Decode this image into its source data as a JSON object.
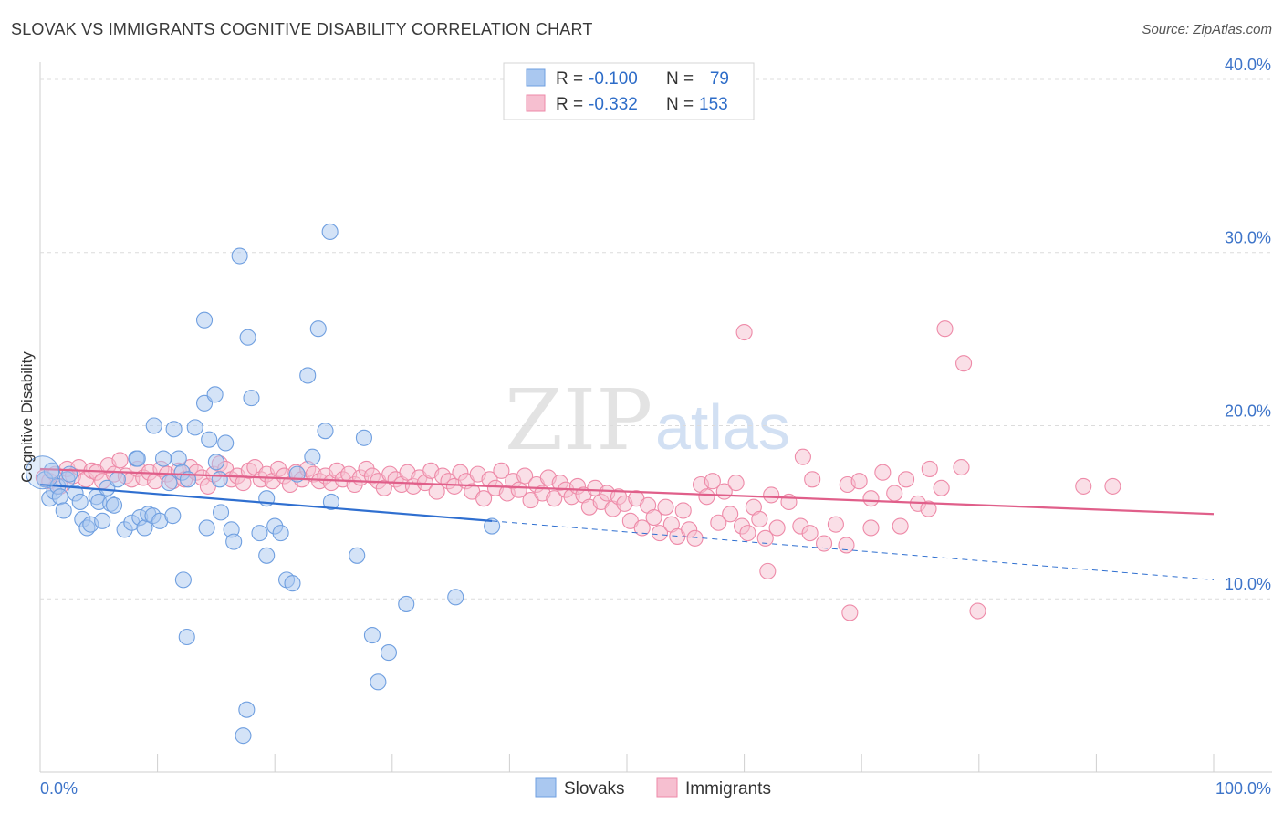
{
  "title": "SLOVAK VS IMMIGRANTS COGNITIVE DISABILITY CORRELATION CHART",
  "source": "Source: ZipAtlas.com",
  "watermark": {
    "left": "ZIP",
    "right": "atlas"
  },
  "chart_data": {
    "type": "scatter",
    "title": "SLOVAK VS IMMIGRANTS COGNITIVE DISABILITY CORRELATION CHART",
    "xlabel": "",
    "ylabel": "Cognitive Disability",
    "xlim": [
      0,
      100
    ],
    "ylim": [
      0,
      41
    ],
    "x_tick_labels": {
      "min": "0.0%",
      "max": "100.0%"
    },
    "y_ticks": [
      {
        "value": 10,
        "label": "10.0%"
      },
      {
        "value": 20,
        "label": "20.0%"
      },
      {
        "value": 30,
        "label": "30.0%"
      },
      {
        "value": 40,
        "label": "40.0%"
      }
    ],
    "grid": "horizontal dashed",
    "legend_position": "bottom-center",
    "stats": [
      {
        "r_label": "R =",
        "r": "-0.100",
        "n_label": "N =",
        "n": "79"
      },
      {
        "r_label": "R =",
        "r": "-0.332",
        "n_label": "N =",
        "n": "153"
      }
    ],
    "series": [
      {
        "name": "Slovaks",
        "color": "#6f9fe0",
        "fill": "#aac8f0",
        "trend": {
          "x": [
            0,
            38.5
          ],
          "y": [
            16.6,
            14.5
          ],
          "dashed_to": [
            100,
            11.1
          ],
          "color": "#2f6fd0"
        },
        "points": [
          [
            0.4,
            16.9
          ],
          [
            0.8,
            15.8
          ],
          [
            1,
            17.4
          ],
          [
            1.2,
            16.2
          ],
          [
            1.5,
            16.5
          ],
          [
            1.7,
            15.9
          ],
          [
            2,
            15.1
          ],
          [
            2.3,
            16.9
          ],
          [
            2.5,
            17.2
          ],
          [
            3,
            16.1
          ],
          [
            3.4,
            15.6
          ],
          [
            3.6,
            14.6
          ],
          [
            4,
            14.1
          ],
          [
            4.3,
            14.3
          ],
          [
            4.8,
            15.9
          ],
          [
            5,
            15.6
          ],
          [
            5.3,
            14.5
          ],
          [
            5.7,
            16.4
          ],
          [
            6,
            15.5
          ],
          [
            6.3,
            15.4
          ],
          [
            6.6,
            16.9
          ],
          [
            7.2,
            14.0
          ],
          [
            7.8,
            14.4
          ],
          [
            8.2,
            18.1
          ],
          [
            8.5,
            14.7
          ],
          [
            8.9,
            14.1
          ],
          [
            9.2,
            14.9
          ],
          [
            9.6,
            14.8
          ],
          [
            10.2,
            14.5
          ],
          [
            10.5,
            18.1
          ],
          [
            11,
            16.7
          ],
          [
            11.3,
            14.8
          ],
          [
            11.8,
            18.1
          ],
          [
            12.1,
            17.3
          ],
          [
            12.6,
            16.9
          ],
          [
            8.3,
            18.1
          ],
          [
            9.7,
            20.0
          ],
          [
            11.4,
            19.8
          ],
          [
            13.2,
            19.9
          ],
          [
            14.0,
            21.3
          ],
          [
            14.4,
            19.2
          ],
          [
            14.9,
            21.8
          ],
          [
            15.0,
            17.9
          ],
          [
            15.3,
            16.9
          ],
          [
            15.8,
            19.0
          ],
          [
            16.3,
            14.0
          ],
          [
            16.5,
            13.3
          ],
          [
            17.7,
            25.1
          ],
          [
            18.0,
            21.6
          ],
          [
            18.7,
            13.8
          ],
          [
            14.0,
            26.1
          ],
          [
            17.0,
            29.8
          ],
          [
            19.3,
            12.5
          ],
          [
            20.0,
            14.2
          ],
          [
            20.5,
            13.8
          ],
          [
            21.0,
            11.1
          ],
          [
            21.5,
            10.9
          ],
          [
            21.9,
            17.2
          ],
          [
            22.8,
            22.9
          ],
          [
            23.2,
            18.2
          ],
          [
            24.3,
            19.7
          ],
          [
            24.7,
            31.2
          ],
          [
            23.7,
            25.6
          ],
          [
            27.0,
            12.5
          ],
          [
            27.6,
            19.3
          ],
          [
            24.8,
            15.6
          ],
          [
            28.3,
            7.9
          ],
          [
            28.8,
            5.2
          ],
          [
            29.7,
            6.9
          ],
          [
            31.2,
            9.7
          ],
          [
            35.4,
            10.1
          ],
          [
            38.5,
            14.2
          ],
          [
            12.2,
            11.1
          ],
          [
            12.5,
            7.8
          ],
          [
            15.4,
            15.0
          ],
          [
            17.6,
            3.6
          ],
          [
            17.3,
            2.1
          ],
          [
            19.3,
            15.8
          ],
          [
            14.2,
            14.1
          ]
        ]
      },
      {
        "name": "Immigrants",
        "color": "#ee8aa8",
        "fill": "#f6bfd0",
        "trend": {
          "x": [
            0,
            100
          ],
          "y": [
            17.5,
            14.9
          ],
          "color": "#e05f8a"
        },
        "points": [
          [
            0.3,
            17.0
          ],
          [
            0.8,
            16.8
          ],
          [
            1.3,
            17.2
          ],
          [
            1.7,
            16.5
          ],
          [
            2.3,
            17.5
          ],
          [
            2.8,
            17.1
          ],
          [
            3.3,
            17.6
          ],
          [
            3.9,
            16.9
          ],
          [
            4.4,
            17.4
          ],
          [
            4.8,
            17.3
          ],
          [
            5.3,
            16.8
          ],
          [
            5.8,
            17.7
          ],
          [
            6.3,
            17.2
          ],
          [
            6.8,
            18.0
          ],
          [
            7.3,
            17.1
          ],
          [
            7.8,
            16.9
          ],
          [
            8.3,
            17.5
          ],
          [
            8.8,
            17.0
          ],
          [
            9.3,
            17.3
          ],
          [
            9.8,
            16.8
          ],
          [
            10.3,
            17.5
          ],
          [
            10.8,
            17.2
          ],
          [
            11.3,
            16.8
          ],
          [
            11.8,
            17.4
          ],
          [
            12.3,
            16.9
          ],
          [
            12.8,
            17.6
          ],
          [
            13.3,
            17.3
          ],
          [
            13.8,
            17.0
          ],
          [
            14.3,
            16.5
          ],
          [
            14.8,
            17.2
          ],
          [
            15.3,
            17.8
          ],
          [
            15.8,
            17.5
          ],
          [
            16.3,
            16.9
          ],
          [
            16.8,
            17.1
          ],
          [
            17.3,
            16.7
          ],
          [
            17.8,
            17.4
          ],
          [
            18.3,
            17.6
          ],
          [
            18.8,
            16.9
          ],
          [
            19.3,
            17.2
          ],
          [
            19.8,
            16.8
          ],
          [
            20.3,
            17.5
          ],
          [
            20.8,
            17.1
          ],
          [
            21.3,
            16.6
          ],
          [
            21.8,
            17.3
          ],
          [
            22.3,
            16.9
          ],
          [
            22.8,
            17.5
          ],
          [
            23.3,
            17.2
          ],
          [
            23.8,
            16.8
          ],
          [
            24.3,
            17.1
          ],
          [
            24.8,
            16.7
          ],
          [
            25.3,
            17.4
          ],
          [
            25.8,
            16.9
          ],
          [
            26.3,
            17.2
          ],
          [
            26.8,
            16.6
          ],
          [
            27.3,
            17.0
          ],
          [
            27.8,
            17.5
          ],
          [
            28.3,
            17.1
          ],
          [
            28.8,
            16.8
          ],
          [
            29.3,
            16.4
          ],
          [
            29.8,
            17.2
          ],
          [
            30.3,
            16.9
          ],
          [
            30.8,
            16.6
          ],
          [
            31.3,
            17.3
          ],
          [
            31.8,
            16.5
          ],
          [
            32.3,
            17.0
          ],
          [
            32.8,
            16.7
          ],
          [
            33.3,
            17.4
          ],
          [
            33.8,
            16.2
          ],
          [
            34.3,
            17.1
          ],
          [
            34.8,
            16.8
          ],
          [
            35.3,
            16.5
          ],
          [
            35.8,
            17.3
          ],
          [
            36.3,
            16.8
          ],
          [
            36.8,
            16.2
          ],
          [
            37.3,
            17.2
          ],
          [
            37.8,
            15.8
          ],
          [
            38.3,
            16.9
          ],
          [
            38.8,
            16.4
          ],
          [
            39.3,
            17.4
          ],
          [
            39.8,
            16.1
          ],
          [
            40.3,
            16.8
          ],
          [
            40.8,
            16.3
          ],
          [
            41.3,
            17.1
          ],
          [
            41.8,
            15.7
          ],
          [
            42.3,
            16.6
          ],
          [
            42.8,
            16.1
          ],
          [
            43.3,
            17.0
          ],
          [
            43.8,
            15.8
          ],
          [
            44.3,
            16.7
          ],
          [
            44.8,
            16.3
          ],
          [
            45.3,
            15.9
          ],
          [
            45.8,
            16.5
          ],
          [
            46.3,
            16.0
          ],
          [
            46.8,
            15.3
          ],
          [
            47.3,
            16.4
          ],
          [
            47.8,
            15.6
          ],
          [
            48.3,
            16.1
          ],
          [
            48.8,
            15.2
          ],
          [
            49.3,
            15.9
          ],
          [
            49.8,
            15.5
          ],
          [
            50.3,
            14.5
          ],
          [
            50.8,
            15.8
          ],
          [
            51.3,
            14.1
          ],
          [
            51.8,
            15.4
          ],
          [
            52.3,
            14.7
          ],
          [
            52.8,
            13.8
          ],
          [
            53.3,
            15.3
          ],
          [
            53.8,
            14.3
          ],
          [
            54.3,
            13.6
          ],
          [
            54.8,
            15.1
          ],
          [
            55.3,
            14.0
          ],
          [
            55.8,
            13.5
          ],
          [
            56.3,
            16.6
          ],
          [
            56.8,
            15.9
          ],
          [
            57.3,
            16.8
          ],
          [
            57.8,
            14.4
          ],
          [
            58.3,
            16.2
          ],
          [
            58.8,
            14.9
          ],
          [
            59.3,
            16.7
          ],
          [
            59.8,
            14.2
          ],
          [
            60.3,
            13.8
          ],
          [
            60.8,
            15.3
          ],
          [
            61.3,
            14.6
          ],
          [
            61.8,
            13.5
          ],
          [
            62.3,
            16.0
          ],
          [
            62.8,
            14.1
          ],
          [
            63.8,
            15.6
          ],
          [
            64.8,
            14.2
          ],
          [
            65.8,
            16.9
          ],
          [
            66.8,
            13.2
          ],
          [
            67.8,
            14.3
          ],
          [
            68.8,
            16.6
          ],
          [
            69.8,
            16.8
          ],
          [
            70.8,
            15.8
          ],
          [
            71.8,
            17.3
          ],
          [
            72.8,
            16.1
          ],
          [
            73.8,
            16.9
          ],
          [
            74.8,
            15.5
          ],
          [
            75.8,
            17.5
          ],
          [
            76.8,
            16.4
          ],
          [
            60.0,
            25.4
          ],
          [
            77.1,
            25.6
          ],
          [
            78.7,
            23.6
          ],
          [
            65.0,
            18.2
          ],
          [
            68.7,
            13.1
          ],
          [
            69.0,
            9.2
          ],
          [
            79.9,
            9.3
          ],
          [
            62.0,
            11.6
          ],
          [
            65.6,
            13.8
          ],
          [
            70.8,
            14.1
          ],
          [
            73.3,
            14.2
          ],
          [
            75.7,
            15.2
          ],
          [
            78.5,
            17.6
          ],
          [
            88.9,
            16.5
          ],
          [
            91.4,
            16.5
          ]
        ]
      }
    ]
  },
  "legend": {
    "items": [
      {
        "label": "Slovaks"
      },
      {
        "label": "Immigrants"
      }
    ]
  }
}
